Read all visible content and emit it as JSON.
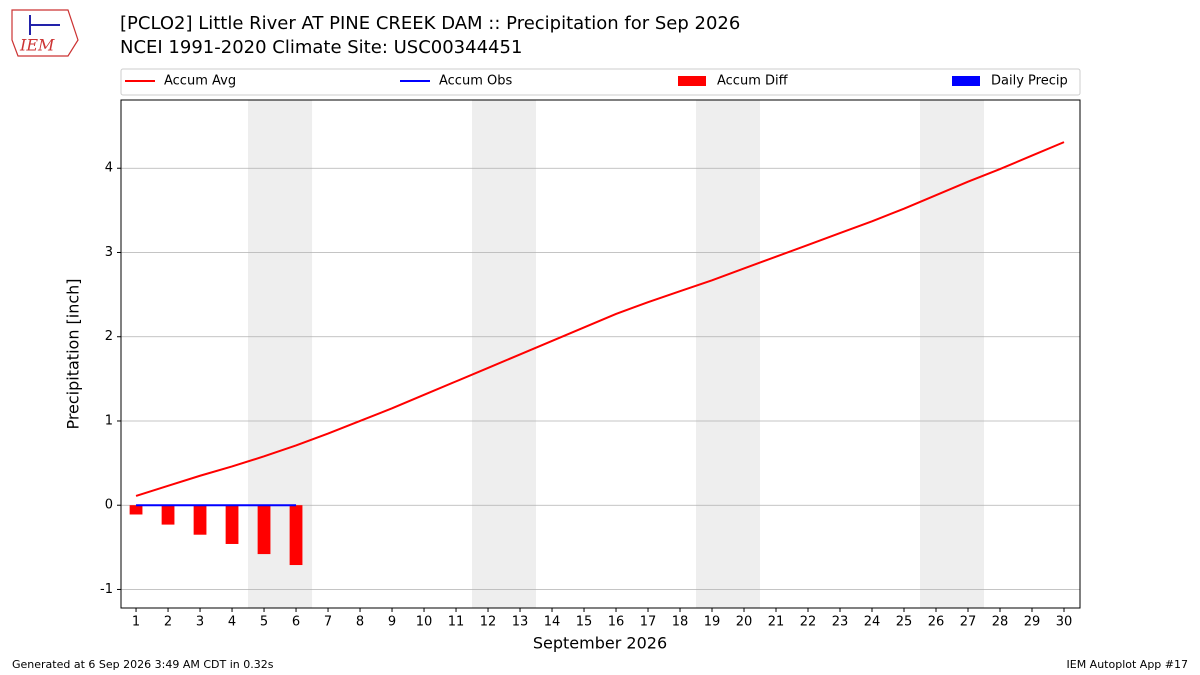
{
  "logo_text": "IEM",
  "footer_left": "Generated at 6 Sep 2026 3:49 AM CDT in 0.32s",
  "footer_right": "IEM Autoplot App #17",
  "chart_data": {
    "type": "line",
    "title": "[PCLO2] Little River  AT PINE CREEK DAM :: Precipitation for Sep 2026",
    "subtitle": "NCEI 1991-2020 Climate Site: USC00344451",
    "x_label": "September 2026",
    "y_label": "Precipitation [inch]",
    "x": [
      1,
      2,
      3,
      4,
      5,
      6,
      7,
      8,
      9,
      10,
      11,
      12,
      13,
      14,
      15,
      16,
      17,
      18,
      19,
      20,
      21,
      22,
      23,
      24,
      25,
      26,
      27,
      28,
      29,
      30
    ],
    "xlim": [
      0.53,
      30.5
    ],
    "xticks": [
      1,
      2,
      3,
      4,
      5,
      6,
      7,
      8,
      9,
      10,
      11,
      12,
      13,
      14,
      15,
      16,
      17,
      18,
      19,
      20,
      21,
      22,
      23,
      24,
      25,
      26,
      27,
      28,
      29,
      30
    ],
    "ylim": [
      -1.22,
      4.81
    ],
    "yticks": [
      -1,
      0,
      1,
      2,
      3,
      4
    ],
    "grid": true,
    "weekend_shading": [
      [
        5,
        6
      ],
      [
        12,
        13
      ],
      [
        19,
        20
      ],
      [
        26,
        27
      ]
    ],
    "series": [
      {
        "name": "Accum Avg",
        "kind": "line",
        "color": "#ff0000",
        "values": [
          0.11,
          0.23,
          0.35,
          0.46,
          0.58,
          0.71,
          0.85,
          1.0,
          1.15,
          1.31,
          1.47,
          1.63,
          1.79,
          1.95,
          2.11,
          2.27,
          2.41,
          2.54,
          2.67,
          2.81,
          2.95,
          3.09,
          3.23,
          3.37,
          3.52,
          3.68,
          3.84,
          3.99,
          4.15,
          4.31
        ]
      },
      {
        "name": "Accum Obs",
        "kind": "line",
        "color": "#0000ff",
        "values": [
          0,
          0,
          0,
          0,
          0,
          0,
          null,
          null,
          null,
          null,
          null,
          null,
          null,
          null,
          null,
          null,
          null,
          null,
          null,
          null,
          null,
          null,
          null,
          null,
          null,
          null,
          null,
          null,
          null,
          null
        ]
      },
      {
        "name": "Accum Diff",
        "kind": "bar",
        "color": "#ff0000",
        "values": [
          -0.11,
          -0.23,
          -0.35,
          -0.46,
          -0.58,
          -0.71,
          null,
          null,
          null,
          null,
          null,
          null,
          null,
          null,
          null,
          null,
          null,
          null,
          null,
          null,
          null,
          null,
          null,
          null,
          null,
          null,
          null,
          null,
          null,
          null
        ]
      },
      {
        "name": "Daily Precip",
        "kind": "bar",
        "color": "#0000ff",
        "values": [
          0,
          0,
          0,
          0,
          0,
          0,
          null,
          null,
          null,
          null,
          null,
          null,
          null,
          null,
          null,
          null,
          null,
          null,
          null,
          null,
          null,
          null,
          null,
          null,
          null,
          null,
          null,
          null,
          null,
          null
        ]
      }
    ]
  }
}
